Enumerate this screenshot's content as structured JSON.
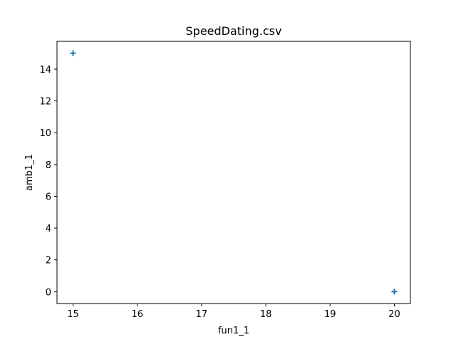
{
  "chart_data": {
    "type": "scatter",
    "title": "SpeedDating.csv",
    "xlabel": "fun1_1",
    "ylabel": "amb1_1",
    "xlim": [
      14.75,
      20.25
    ],
    "ylim": [
      -0.75,
      15.75
    ],
    "xticks": [
      15,
      16,
      17,
      18,
      19,
      20
    ],
    "yticks": [
      0,
      2,
      4,
      6,
      8,
      10,
      12,
      14
    ],
    "marker": "plus",
    "grid": false,
    "series": [
      {
        "color": "#1f77b4",
        "points": [
          {
            "x": 15,
            "y": 15
          },
          {
            "x": 20,
            "y": 0
          }
        ]
      }
    ]
  }
}
